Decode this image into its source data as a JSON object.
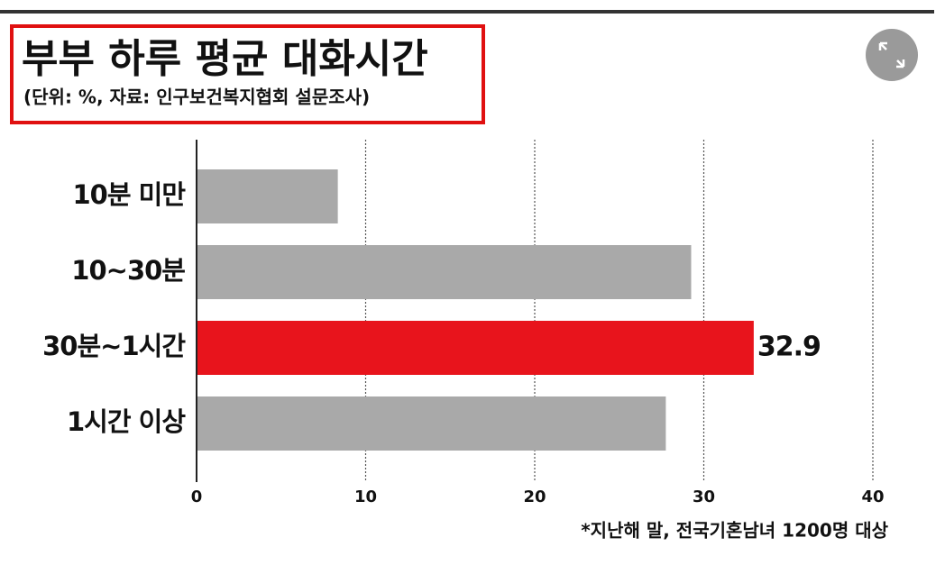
{
  "chart_data": {
    "type": "bar",
    "orientation": "horizontal",
    "title": "부부 하루 평균 대화시간",
    "subtitle": "(단위: %, 자료: 인구보건복지협회 설문조사)",
    "categories": [
      "10분 미만",
      "10~30분",
      "30분~1시간",
      "1시간 이상"
    ],
    "values": [
      8.3,
      29.2,
      32.9,
      27.7
    ],
    "colors": [
      "#a9a9a9",
      "#a9a9a9",
      "#e8141c",
      "#a9a9a9"
    ],
    "data_labels": [
      false,
      false,
      true,
      false
    ],
    "xlim": [
      0,
      40
    ],
    "xticks": [
      0,
      10,
      20,
      30,
      40
    ],
    "grid": true,
    "footnote": "*지난해 말, 전국기혼남녀 1200명 대상"
  }
}
